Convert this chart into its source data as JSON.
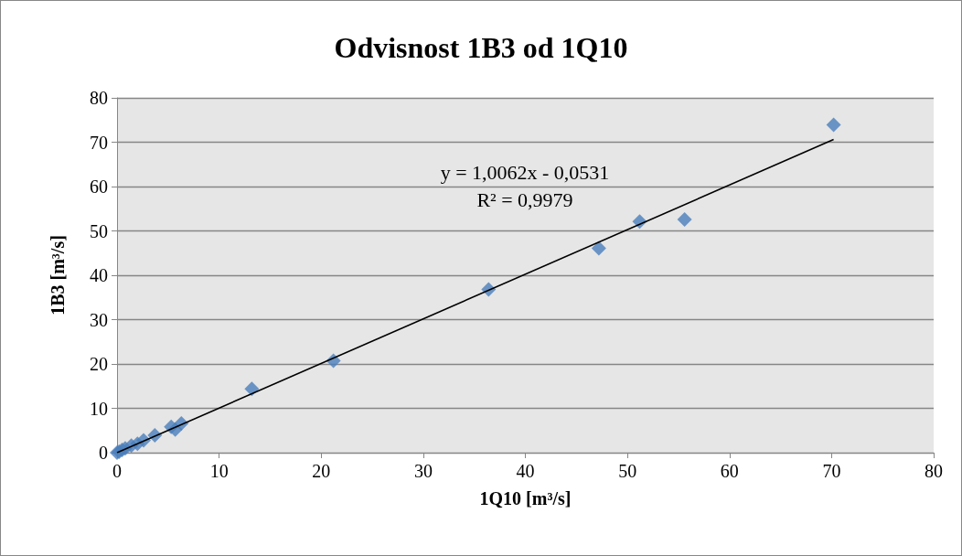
{
  "chart_data": {
    "type": "scatter",
    "title": "Odvisnost 1B3 od 1Q10",
    "xlabel": "1Q10 [m³/s]",
    "ylabel": "1B3 [m³/s]",
    "annotations": [
      "y = 1,0062x - 0,0531",
      "R² = 0,9979"
    ],
    "x": [
      0,
      0.2,
      0.5,
      0.8,
      1.4,
      2.0,
      2.6,
      3.7,
      5.3,
      5.7,
      6.3,
      13.2,
      21.2,
      36.4,
      47.2,
      51.2,
      55.6,
      70.2
    ],
    "series": [
      {
        "color": "#4a7ebb",
        "values": [
          0,
          0.2,
          0.6,
          1.0,
          1.6,
          2.0,
          2.8,
          3.9,
          5.8,
          5.2,
          6.6,
          14.4,
          20.7,
          36.8,
          46.1,
          52.1,
          52.6,
          73.9
        ]
      },
      {
        "type": "line",
        "color": "#000000",
        "marker": "none",
        "x": [
          0,
          70.2
        ],
        "values": [
          0,
          70.6
        ]
      }
    ],
    "xlim": [
      0,
      80
    ],
    "xticks": [
      0,
      10,
      20,
      30,
      40,
      50,
      60,
      70,
      80
    ],
    "ylim": [
      0,
      80
    ],
    "yticks": [
      0,
      10,
      20,
      30,
      40,
      50,
      60,
      70,
      80
    ],
    "grid": "y",
    "marker": "diamond"
  }
}
